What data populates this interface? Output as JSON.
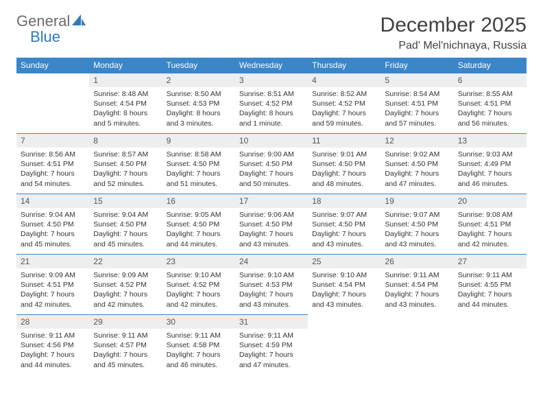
{
  "brand": {
    "part1": "General",
    "part2": "Blue"
  },
  "title": "December 2025",
  "location": "Pad' Mel'nichnaya, Russia",
  "colors": {
    "header_bg": "#3a86c8",
    "header_fg": "#ffffff",
    "daynum_bg": "#eceef0",
    "border": "#3a86c8",
    "brand_gray": "#6b6b6b",
    "brand_blue": "#2f79b9"
  },
  "weekdays": [
    "Sunday",
    "Monday",
    "Tuesday",
    "Wednesday",
    "Thursday",
    "Friday",
    "Saturday"
  ],
  "weeks": [
    [
      null,
      {
        "n": "1",
        "sr": "Sunrise: 8:48 AM",
        "ss": "Sunset: 4:54 PM",
        "dl": "Daylight: 8 hours and 5 minutes."
      },
      {
        "n": "2",
        "sr": "Sunrise: 8:50 AM",
        "ss": "Sunset: 4:53 PM",
        "dl": "Daylight: 8 hours and 3 minutes."
      },
      {
        "n": "3",
        "sr": "Sunrise: 8:51 AM",
        "ss": "Sunset: 4:52 PM",
        "dl": "Daylight: 8 hours and 1 minute."
      },
      {
        "n": "4",
        "sr": "Sunrise: 8:52 AM",
        "ss": "Sunset: 4:52 PM",
        "dl": "Daylight: 7 hours and 59 minutes."
      },
      {
        "n": "5",
        "sr": "Sunrise: 8:54 AM",
        "ss": "Sunset: 4:51 PM",
        "dl": "Daylight: 7 hours and 57 minutes."
      },
      {
        "n": "6",
        "sr": "Sunrise: 8:55 AM",
        "ss": "Sunset: 4:51 PM",
        "dl": "Daylight: 7 hours and 56 minutes."
      }
    ],
    [
      {
        "n": "7",
        "sr": "Sunrise: 8:56 AM",
        "ss": "Sunset: 4:51 PM",
        "dl": "Daylight: 7 hours and 54 minutes."
      },
      {
        "n": "8",
        "sr": "Sunrise: 8:57 AM",
        "ss": "Sunset: 4:50 PM",
        "dl": "Daylight: 7 hours and 52 minutes."
      },
      {
        "n": "9",
        "sr": "Sunrise: 8:58 AM",
        "ss": "Sunset: 4:50 PM",
        "dl": "Daylight: 7 hours and 51 minutes."
      },
      {
        "n": "10",
        "sr": "Sunrise: 9:00 AM",
        "ss": "Sunset: 4:50 PM",
        "dl": "Daylight: 7 hours and 50 minutes."
      },
      {
        "n": "11",
        "sr": "Sunrise: 9:01 AM",
        "ss": "Sunset: 4:50 PM",
        "dl": "Daylight: 7 hours and 48 minutes."
      },
      {
        "n": "12",
        "sr": "Sunrise: 9:02 AM",
        "ss": "Sunset: 4:50 PM",
        "dl": "Daylight: 7 hours and 47 minutes."
      },
      {
        "n": "13",
        "sr": "Sunrise: 9:03 AM",
        "ss": "Sunset: 4:49 PM",
        "dl": "Daylight: 7 hours and 46 minutes."
      }
    ],
    [
      {
        "n": "14",
        "sr": "Sunrise: 9:04 AM",
        "ss": "Sunset: 4:50 PM",
        "dl": "Daylight: 7 hours and 45 minutes."
      },
      {
        "n": "15",
        "sr": "Sunrise: 9:04 AM",
        "ss": "Sunset: 4:50 PM",
        "dl": "Daylight: 7 hours and 45 minutes."
      },
      {
        "n": "16",
        "sr": "Sunrise: 9:05 AM",
        "ss": "Sunset: 4:50 PM",
        "dl": "Daylight: 7 hours and 44 minutes."
      },
      {
        "n": "17",
        "sr": "Sunrise: 9:06 AM",
        "ss": "Sunset: 4:50 PM",
        "dl": "Daylight: 7 hours and 43 minutes."
      },
      {
        "n": "18",
        "sr": "Sunrise: 9:07 AM",
        "ss": "Sunset: 4:50 PM",
        "dl": "Daylight: 7 hours and 43 minutes."
      },
      {
        "n": "19",
        "sr": "Sunrise: 9:07 AM",
        "ss": "Sunset: 4:50 PM",
        "dl": "Daylight: 7 hours and 43 minutes."
      },
      {
        "n": "20",
        "sr": "Sunrise: 9:08 AM",
        "ss": "Sunset: 4:51 PM",
        "dl": "Daylight: 7 hours and 42 minutes."
      }
    ],
    [
      {
        "n": "21",
        "sr": "Sunrise: 9:09 AM",
        "ss": "Sunset: 4:51 PM",
        "dl": "Daylight: 7 hours and 42 minutes."
      },
      {
        "n": "22",
        "sr": "Sunrise: 9:09 AM",
        "ss": "Sunset: 4:52 PM",
        "dl": "Daylight: 7 hours and 42 minutes."
      },
      {
        "n": "23",
        "sr": "Sunrise: 9:10 AM",
        "ss": "Sunset: 4:52 PM",
        "dl": "Daylight: 7 hours and 42 minutes."
      },
      {
        "n": "24",
        "sr": "Sunrise: 9:10 AM",
        "ss": "Sunset: 4:53 PM",
        "dl": "Daylight: 7 hours and 43 minutes."
      },
      {
        "n": "25",
        "sr": "Sunrise: 9:10 AM",
        "ss": "Sunset: 4:54 PM",
        "dl": "Daylight: 7 hours and 43 minutes."
      },
      {
        "n": "26",
        "sr": "Sunrise: 9:11 AM",
        "ss": "Sunset: 4:54 PM",
        "dl": "Daylight: 7 hours and 43 minutes."
      },
      {
        "n": "27",
        "sr": "Sunrise: 9:11 AM",
        "ss": "Sunset: 4:55 PM",
        "dl": "Daylight: 7 hours and 44 minutes."
      }
    ],
    [
      {
        "n": "28",
        "sr": "Sunrise: 9:11 AM",
        "ss": "Sunset: 4:56 PM",
        "dl": "Daylight: 7 hours and 44 minutes."
      },
      {
        "n": "29",
        "sr": "Sunrise: 9:11 AM",
        "ss": "Sunset: 4:57 PM",
        "dl": "Daylight: 7 hours and 45 minutes."
      },
      {
        "n": "30",
        "sr": "Sunrise: 9:11 AM",
        "ss": "Sunset: 4:58 PM",
        "dl": "Daylight: 7 hours and 46 minutes."
      },
      {
        "n": "31",
        "sr": "Sunrise: 9:11 AM",
        "ss": "Sunset: 4:59 PM",
        "dl": "Daylight: 7 hours and 47 minutes."
      },
      null,
      null,
      null
    ]
  ]
}
